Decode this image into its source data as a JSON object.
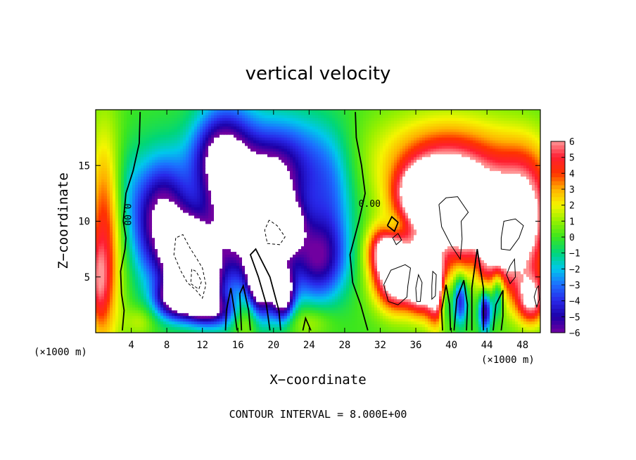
{
  "chart_data": {
    "type": "heatmap",
    "title": "vertical velocity",
    "xlabel": "X−coordinate",
    "ylabel": "Z−coordinate",
    "x_unit_left": "(×1000 m)",
    "x_unit_right": "(×1000 m)",
    "footer": "CONTOUR INTERVAL = 8.000E+00",
    "xlim": [
      0,
      50
    ],
    "ylim": [
      0,
      20
    ],
    "x_ticks": [
      4,
      8,
      12,
      16,
      20,
      24,
      28,
      32,
      36,
      40,
      44,
      48
    ],
    "y_ticks": [
      5,
      10,
      15
    ],
    "colorbar": {
      "range": [
        -6,
        6
      ],
      "ticks": [
        6,
        5,
        4,
        3,
        2,
        1,
        0,
        -1,
        -2,
        -3,
        -4,
        -5,
        -6
      ],
      "tick_labels": [
        "6",
        "5",
        "4",
        "3",
        "2",
        "1",
        "0",
        "−1",
        "−2",
        "−3",
        "−4",
        "−5",
        "−6"
      ]
    },
    "contour_labels": [
      {
        "text": "0.00",
        "x": 3.2,
        "z": 10.6,
        "rotate": 90
      },
      {
        "text": "0.00",
        "x": 30.8,
        "z": 11.3,
        "rotate": 0
      }
    ],
    "field_blobs": [
      {
        "x": 1.0,
        "z": 8.0,
        "sx": 1.4,
        "sz": 7.0,
        "a": 4.5
      },
      {
        "x": 0.3,
        "z": 4.5,
        "sx": 0.8,
        "sz": 2.5,
        "a": 2.5
      },
      {
        "x": 7.5,
        "z": 10.0,
        "sx": 2.3,
        "sz": 3.8,
        "a": -7.0
      },
      {
        "x": 10.5,
        "z": 6.5,
        "sx": 1.6,
        "sz": 2.2,
        "a": -12.0
      },
      {
        "x": 12.0,
        "z": 4.5,
        "sx": 1.2,
        "sz": 1.6,
        "a": -9.0
      },
      {
        "x": 9.0,
        "z": 3.0,
        "sx": 1.6,
        "sz": 1.2,
        "a": -6.0
      },
      {
        "x": 15.0,
        "z": 11.5,
        "sx": 2.3,
        "sz": 5.5,
        "a": -6.5
      },
      {
        "x": 13.5,
        "z": 16.0,
        "sx": 2.2,
        "sz": 2.5,
        "a": -3.5
      },
      {
        "x": 19.5,
        "z": 10.5,
        "sx": 2.4,
        "sz": 3.5,
        "a": -8.0
      },
      {
        "x": 20.5,
        "z": 9.5,
        "sx": 1.4,
        "sz": 1.3,
        "a": -12.0
      },
      {
        "x": 18.5,
        "z": 5.0,
        "sx": 1.0,
        "sz": 2.5,
        "a": -8.5
      },
      {
        "x": 21.0,
        "z": 3.5,
        "sx": 0.9,
        "sz": 1.6,
        "a": -8.0
      },
      {
        "x": 21.5,
        "z": 15.5,
        "sx": 3.5,
        "sz": 3.0,
        "a": -3.5
      },
      {
        "x": 25.0,
        "z": 6.5,
        "sx": 2.2,
        "sz": 2.6,
        "a": -5.0
      },
      {
        "x": 26.5,
        "z": 12.0,
        "sx": 2.0,
        "sz": 4.0,
        "a": -2.5
      },
      {
        "x": 13.0,
        "z": 2.0,
        "sx": 2.0,
        "sz": 1.0,
        "a": -4.5
      },
      {
        "x": 3.5,
        "z": 13.0,
        "sx": 1.2,
        "sz": 3.0,
        "a": -1.0
      },
      {
        "x": 17.0,
        "z": 1.5,
        "sx": 1.2,
        "sz": 1.5,
        "a": 2.5
      },
      {
        "x": 24.0,
        "z": 1.0,
        "sx": 1.8,
        "sz": 1.0,
        "a": 1.5
      },
      {
        "x": 5.0,
        "z": 1.0,
        "sx": 1.2,
        "sz": 1.0,
        "a": 1.5
      },
      {
        "x": 39.5,
        "z": 15.5,
        "sx": 6.0,
        "sz": 3.0,
        "a": 4.0
      },
      {
        "x": 40.0,
        "z": 11.5,
        "sx": 3.2,
        "sz": 2.6,
        "a": 9.0
      },
      {
        "x": 37.0,
        "z": 12.5,
        "sx": 2.0,
        "sz": 1.6,
        "a": 6.0
      },
      {
        "x": 46.0,
        "z": 8.5,
        "sx": 2.8,
        "sz": 3.2,
        "a": 7.5
      },
      {
        "x": 48.5,
        "z": 12.0,
        "sx": 2.2,
        "sz": 3.5,
        "a": 4.0
      },
      {
        "x": 34.0,
        "z": 5.0,
        "sx": 1.8,
        "sz": 2.0,
        "a": 8.5
      },
      {
        "x": 32.5,
        "z": 7.5,
        "sx": 1.4,
        "sz": 1.5,
        "a": 5.0
      },
      {
        "x": 36.5,
        "z": 5.0,
        "sx": 0.9,
        "sz": 2.0,
        "a": 7.0
      },
      {
        "x": 38.3,
        "z": 4.0,
        "sx": 0.8,
        "sz": 2.2,
        "a": 7.0
      },
      {
        "x": 49.0,
        "z": 3.0,
        "sx": 1.2,
        "sz": 1.6,
        "a": 6.0
      },
      {
        "x": 41.0,
        "z": 3.0,
        "sx": 0.6,
        "sz": 1.6,
        "a": -5.5
      },
      {
        "x": 43.8,
        "z": 2.0,
        "sx": 0.5,
        "sz": 1.3,
        "a": -6.5
      },
      {
        "x": 45.2,
        "z": 3.5,
        "sx": 0.5,
        "sz": 1.5,
        "a": -4.0
      },
      {
        "x": 39.3,
        "z": 3.0,
        "sx": 0.45,
        "sz": 1.5,
        "a": -3.5
      },
      {
        "x": 42.5,
        "z": 5.0,
        "sx": 0.6,
        "sz": 3.0,
        "a": -1.5
      },
      {
        "x": 33.5,
        "z": 9.5,
        "sx": 0.9,
        "sz": 0.8,
        "a": -1.5
      },
      {
        "x": 40.0,
        "z": 7.0,
        "sx": 5.0,
        "sz": 4.0,
        "a": 2.0
      }
    ],
    "zero_contours": [
      [
        [
          5.0,
          19.8
        ],
        [
          4.9,
          17
        ],
        [
          4.2,
          14.5
        ],
        [
          3.4,
          12.5
        ],
        [
          3.1,
          10
        ],
        [
          3.4,
          8.5
        ],
        [
          3.3,
          7.5
        ],
        [
          2.8,
          5.5
        ],
        [
          2.9,
          3.5
        ],
        [
          3.2,
          2
        ],
        [
          3.0,
          0.2
        ]
      ],
      [
        [
          29.2,
          19.8
        ],
        [
          29.3,
          17.5
        ],
        [
          29.9,
          15
        ],
        [
          30.3,
          12.5
        ],
        [
          29.6,
          10
        ],
        [
          28.6,
          7
        ],
        [
          28.9,
          4.5
        ],
        [
          29.8,
          2.5
        ],
        [
          30.6,
          0.2
        ]
      ],
      [
        [
          14.6,
          0.2
        ],
        [
          14.7,
          2
        ],
        [
          15.2,
          4
        ],
        [
          15.6,
          2
        ],
        [
          15.9,
          0.2
        ]
      ],
      [
        [
          19.6,
          0.2
        ],
        [
          19.2,
          2.5
        ],
        [
          18.3,
          5
        ],
        [
          17.4,
          7
        ],
        [
          18.0,
          7.5
        ],
        [
          19.6,
          5
        ],
        [
          20.6,
          2
        ],
        [
          20.8,
          0.2
        ]
      ],
      [
        [
          23.3,
          0.2
        ],
        [
          23.6,
          1.3
        ],
        [
          24.2,
          0.2
        ]
      ],
      [
        [
          16.4,
          0.2
        ],
        [
          16.2,
          3.5
        ],
        [
          16.6,
          4.2
        ],
        [
          17.2,
          2
        ],
        [
          17.4,
          0.2
        ]
      ],
      [
        [
          32.8,
          9.6
        ],
        [
          33.3,
          10.4
        ],
        [
          34.0,
          9.9
        ],
        [
          33.6,
          9.1
        ],
        [
          32.8,
          9.6
        ]
      ],
      [
        [
          42.3,
          0.2
        ],
        [
          42.3,
          4
        ],
        [
          42.9,
          7.5
        ],
        [
          43.6,
          4
        ],
        [
          43.6,
          0.2
        ]
      ],
      [
        [
          40.3,
          0.2
        ],
        [
          40.6,
          3
        ],
        [
          41.4,
          4.7
        ],
        [
          41.8,
          2.5
        ],
        [
          41.7,
          0.2
        ]
      ],
      [
        [
          44.7,
          0.2
        ],
        [
          45.0,
          2.5
        ],
        [
          45.8,
          3.8
        ],
        [
          45.8,
          1.5
        ],
        [
          45.6,
          0.2
        ]
      ],
      [
        [
          39.0,
          0.2
        ],
        [
          38.9,
          2
        ],
        [
          39.4,
          4.3
        ],
        [
          39.8,
          2.5
        ],
        [
          39.9,
          0.2
        ]
      ]
    ],
    "dashed_contours": [
      [
        [
          9.0,
          8.5
        ],
        [
          8.8,
          7
        ],
        [
          9.6,
          5.5
        ],
        [
          10.3,
          4.5
        ],
        [
          11.3,
          3.8
        ],
        [
          12.0,
          3.1
        ],
        [
          12.4,
          4.3
        ],
        [
          12.0,
          5.8
        ],
        [
          11.4,
          6.6
        ],
        [
          10.6,
          7.6
        ],
        [
          9.8,
          8.8
        ],
        [
          9.0,
          8.5
        ]
      ],
      [
        [
          10.8,
          5.7
        ],
        [
          10.7,
          4.4
        ],
        [
          11.6,
          3.9
        ],
        [
          11.9,
          4.6
        ],
        [
          11.3,
          5.5
        ],
        [
          10.8,
          5.7
        ]
      ],
      [
        [
          19.5,
          10.1
        ],
        [
          19.0,
          9.2
        ],
        [
          19.3,
          8.0
        ],
        [
          20.7,
          7.9
        ],
        [
          21.3,
          8.6
        ],
        [
          20.4,
          9.6
        ],
        [
          19.5,
          10.1
        ]
      ]
    ],
    "solid_contours": [
      [
        [
          38.6,
          11.5
        ],
        [
          38.9,
          9.5
        ],
        [
          40.0,
          7.8
        ],
        [
          41.0,
          6.6
        ],
        [
          41.2,
          8.4
        ],
        [
          41.1,
          10.0
        ],
        [
          41.9,
          10.8
        ],
        [
          40.7,
          12.2
        ],
        [
          39.4,
          12.1
        ],
        [
          38.6,
          11.5
        ]
      ],
      [
        [
          35.1,
          4.2
        ],
        [
          35.4,
          5.8
        ],
        [
          34.8,
          6.1
        ],
        [
          33.2,
          5.6
        ],
        [
          32.4,
          4.3
        ],
        [
          32.9,
          2.8
        ],
        [
          34.0,
          2.5
        ],
        [
          35.0,
          3.2
        ],
        [
          35.1,
          4.2
        ]
      ],
      [
        [
          36.0,
          4.0
        ],
        [
          36.3,
          5.2
        ],
        [
          36.7,
          4.5
        ],
        [
          36.5,
          2.8
        ],
        [
          36.1,
          2.8
        ],
        [
          36.0,
          4.0
        ]
      ],
      [
        [
          37.8,
          4.2
        ],
        [
          37.9,
          5.5
        ],
        [
          38.3,
          5.2
        ],
        [
          38.2,
          3.3
        ],
        [
          37.8,
          3.0
        ],
        [
          37.8,
          4.2
        ]
      ],
      [
        [
          45.6,
          8.5
        ],
        [
          45.9,
          10.0
        ],
        [
          47.2,
          10.2
        ],
        [
          48.1,
          9.6
        ],
        [
          47.6,
          8.5
        ],
        [
          46.6,
          7.4
        ],
        [
          45.6,
          7.5
        ],
        [
          45.6,
          8.5
        ]
      ],
      [
        [
          46.6,
          6.0
        ],
        [
          46.2,
          5.2
        ],
        [
          46.6,
          4.4
        ],
        [
          47.2,
          5.0
        ],
        [
          47.1,
          6.6
        ],
        [
          46.6,
          6.0
        ]
      ],
      [
        [
          49.6,
          4.0
        ],
        [
          49.3,
          3.2
        ],
        [
          49.6,
          2.3
        ],
        [
          49.9,
          3.0
        ],
        [
          49.8,
          4.2
        ],
        [
          49.6,
          4.0
        ]
      ],
      [
        [
          34.0,
          8.9
        ],
        [
          34.4,
          8.3
        ],
        [
          33.8,
          7.9
        ],
        [
          33.4,
          8.5
        ],
        [
          34.0,
          8.9
        ]
      ]
    ]
  }
}
